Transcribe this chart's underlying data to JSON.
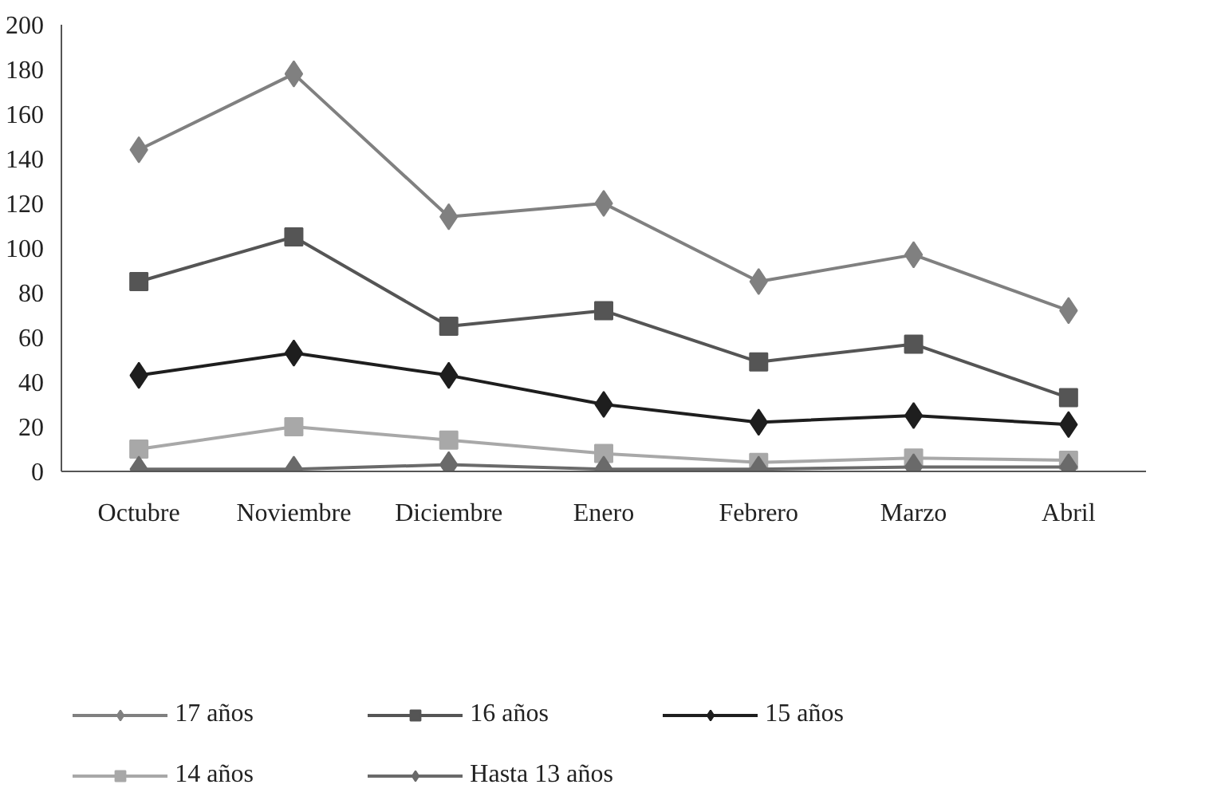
{
  "chart_data": {
    "type": "line",
    "categories": [
      "Octubre",
      "Noviembre",
      "Diciembre",
      "Enero",
      "Febrero",
      "Marzo",
      "Abril"
    ],
    "series": [
      {
        "name": "17 años",
        "color": "#808080",
        "marker": "diamond",
        "values": [
          144,
          178,
          114,
          120,
          85,
          97,
          72
        ]
      },
      {
        "name": "16 años",
        "color": "#555555",
        "marker": "square",
        "values": [
          85,
          105,
          65,
          72,
          49,
          57,
          33
        ]
      },
      {
        "name": "15 años",
        "color": "#1e1e1e",
        "marker": "diamond",
        "values": [
          43,
          53,
          43,
          30,
          22,
          25,
          21
        ]
      },
      {
        "name": "14 años",
        "color": "#a8a8a8",
        "marker": "square",
        "values": [
          10,
          20,
          14,
          8,
          4,
          6,
          5
        ]
      },
      {
        "name": "Hasta 13 años",
        "color": "#6a6a6a",
        "marker": "diamond",
        "values": [
          1,
          1,
          3,
          1,
          1,
          2,
          2
        ]
      }
    ],
    "ylim": [
      0,
      200
    ],
    "yticks": [
      0,
      20,
      40,
      60,
      80,
      100,
      120,
      140,
      160,
      180,
      200
    ],
    "grid": false,
    "legend": "bottom"
  }
}
